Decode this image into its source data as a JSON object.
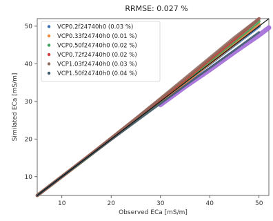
{
  "chart_data": {
    "type": "scatter",
    "title": "RRMSE: 0.027 %",
    "xlabel": "Observed ECa [mS/m]",
    "ylabel": "Similated ECa [mS/m]",
    "xlim": [
      5,
      52
    ],
    "ylim": [
      5,
      52
    ],
    "xticks": [
      10,
      20,
      30,
      40,
      50
    ],
    "yticks": [
      10,
      20,
      30,
      40,
      50
    ],
    "grid": false,
    "legend_position": "top-left",
    "series": [
      {
        "name": "VCP0.2f24740h0 (0.03 %)",
        "color": "#3b6fb0",
        "points": [
          [
            5,
            5
          ],
          [
            10,
            10
          ],
          [
            15,
            15
          ],
          [
            20,
            20
          ],
          [
            25,
            25
          ],
          [
            30,
            30
          ],
          [
            35,
            35
          ],
          [
            40,
            40
          ],
          [
            45,
            45
          ],
          [
            50,
            50
          ]
        ]
      },
      {
        "name": "VCP0.33f24740h0 (0.01 %)",
        "color": "#f08a3c",
        "points": [
          [
            5,
            5
          ],
          [
            10,
            10
          ],
          [
            15,
            15
          ],
          [
            20,
            20
          ],
          [
            25,
            25
          ],
          [
            30,
            30
          ],
          [
            35,
            35
          ],
          [
            40,
            40.2
          ],
          [
            45,
            45.3
          ],
          [
            50,
            50.5
          ]
        ]
      },
      {
        "name": "VCP0.50f24740h0 (0.02 %)",
        "color": "#3aa05a",
        "points": [
          [
            5,
            5
          ],
          [
            10,
            10
          ],
          [
            15,
            15
          ],
          [
            20,
            20.1
          ],
          [
            25,
            25.2
          ],
          [
            30,
            30.3
          ],
          [
            35,
            35.5
          ],
          [
            40,
            40.8
          ],
          [
            45,
            46
          ],
          [
            50,
            51.3
          ]
        ]
      },
      {
        "name": "VCP0.72f24740h0 (0.02 %)",
        "color": "#d43a3a",
        "points": [
          [
            5,
            5
          ],
          [
            10,
            10
          ],
          [
            15,
            15.1
          ],
          [
            20,
            20.2
          ],
          [
            25,
            25.4
          ],
          [
            30,
            30.6
          ],
          [
            35,
            35.8
          ],
          [
            40,
            41.2
          ],
          [
            45,
            46.5
          ],
          [
            50,
            52
          ]
        ]
      },
      {
        "name": "VCP1.03f24740h0 (0.03 %)",
        "color": "#8d6b5e",
        "points": [
          [
            5,
            5
          ],
          [
            10,
            10
          ],
          [
            15,
            15.1
          ],
          [
            20,
            20.3
          ],
          [
            25,
            25.5
          ],
          [
            30,
            30.8
          ],
          [
            35,
            36.2
          ],
          [
            40,
            41.6
          ],
          [
            45,
            47
          ],
          [
            50,
            52
          ]
        ]
      },
      {
        "name": "VCP1.50f24740h0 (0.04 %)",
        "color": "#3d5a6b",
        "points": [
          [
            5,
            5
          ],
          [
            10,
            10
          ],
          [
            15,
            14.9
          ],
          [
            20,
            19.8
          ],
          [
            25,
            24.6
          ],
          [
            30,
            29.4
          ],
          [
            35,
            34.2
          ],
          [
            40,
            38.9
          ],
          [
            45,
            43.6
          ],
          [
            50,
            48.4
          ]
        ]
      }
    ],
    "extra_scatter": {
      "color": "#a26ad8",
      "points": [
        [
          30,
          29.1
        ],
        [
          35,
          33.9
        ],
        [
          40,
          38.4
        ],
        [
          45,
          43.1
        ],
        [
          50,
          47.6
        ],
        [
          52,
          49.6
        ]
      ]
    },
    "reference_line": {
      "color": "#111111",
      "points": [
        [
          5,
          5
        ],
        [
          52,
          52
        ]
      ]
    }
  }
}
